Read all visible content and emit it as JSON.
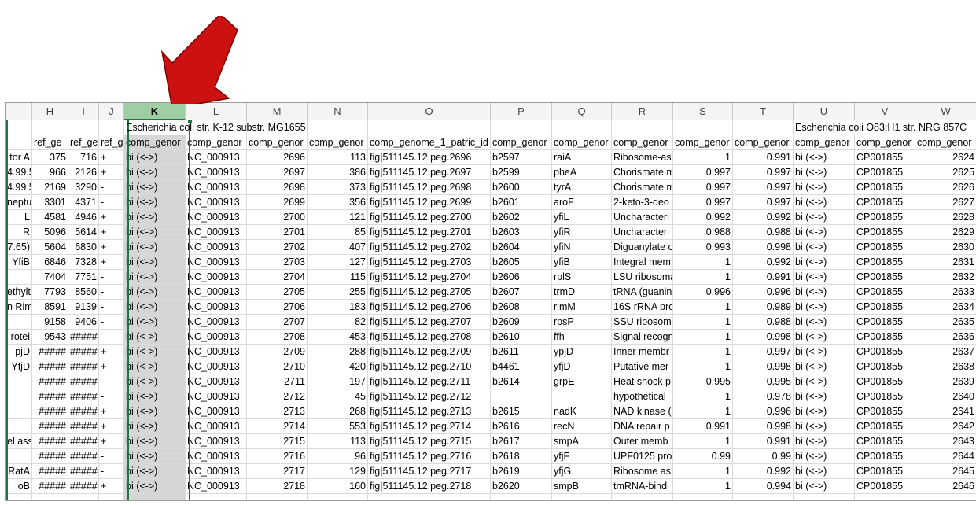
{
  "columns": [
    "H",
    "I",
    "J",
    "K",
    "L",
    "M",
    "N",
    "O",
    "P",
    "Q",
    "R",
    "S",
    "T",
    "U",
    "V",
    "W"
  ],
  "selected_column": "K",
  "group_headers": {
    "K": "Escherichia coli str. K-12 substr. MG1655",
    "U": "Escherichia coli O83:H1 str. NRG 857C"
  },
  "field_headers": [
    "ref_ge",
    "ref_ge",
    "ref_ge",
    "comp_genor",
    "comp_genor",
    "comp_genor",
    "comp_genor",
    "comp_genome_1_patric_id",
    "comp_genor",
    "comp_genor",
    "comp_genor",
    "comp_genor",
    "comp_genor",
    "comp_genor",
    "comp_genor",
    "comp_genor"
  ],
  "row_fragments": [
    "tor A",
    "4.99.5",
    "4.99.5",
    "neptu",
    "L",
    "R",
    "7.65)",
    "YfiB",
    "",
    "ethylt",
    "n Rim",
    "",
    "rotei",
    "pjD",
    "YfjD",
    "",
    "",
    "",
    "",
    "el ass",
    "",
    "RatA",
    "oB"
  ],
  "rows": [
    [
      "375",
      "716",
      "+",
      "bi (<->)",
      "NC_000913",
      "2696",
      "113",
      "fig|511145.12.peg.2696",
      "b2597",
      "raiA",
      "Ribosome-as",
      "1",
      "0.991",
      "bi (<->)",
      "CP001855",
      "2624"
    ],
    [
      "966",
      "2126",
      "+",
      "bi (<->)",
      "NC_000913",
      "2697",
      "386",
      "fig|511145.12.peg.2697",
      "b2599",
      "pheA",
      "Chorismate m",
      "0.997",
      "0.997",
      "bi (<->)",
      "CP001855",
      "2625"
    ],
    [
      "2169",
      "3290",
      "-",
      "bi (<->)",
      "NC_000913",
      "2698",
      "373",
      "fig|511145.12.peg.2698",
      "b2600",
      "tyrA",
      "Chorismate m",
      "0.997",
      "0.997",
      "bi (<->)",
      "CP001855",
      "2626"
    ],
    [
      "3301",
      "4371",
      "-",
      "bi (<->)",
      "NC_000913",
      "2699",
      "356",
      "fig|511145.12.peg.2699",
      "b2601",
      "aroF",
      "2-keto-3-deo",
      "0.997",
      "0.997",
      "bi (<->)",
      "CP001855",
      "2627"
    ],
    [
      "4581",
      "4946",
      "+",
      "bi (<->)",
      "NC_000913",
      "2700",
      "121",
      "fig|511145.12.peg.2700",
      "b2602",
      "yfiL",
      "Uncharacteri",
      "0.992",
      "0.992",
      "bi (<->)",
      "CP001855",
      "2628"
    ],
    [
      "5096",
      "5614",
      "+",
      "bi (<->)",
      "NC_000913",
      "2701",
      "85",
      "fig|511145.12.peg.2701",
      "b2603",
      "yfiR",
      "Uncharacteri",
      "0.988",
      "0.988",
      "bi (<->)",
      "CP001855",
      "2629"
    ],
    [
      "5604",
      "6830",
      "+",
      "bi (<->)",
      "NC_000913",
      "2702",
      "407",
      "fig|511145.12.peg.2702",
      "b2604",
      "yfiN",
      "Diguanylate c",
      "0.993",
      "0.998",
      "bi (<->)",
      "CP001855",
      "2630"
    ],
    [
      "6846",
      "7328",
      "+",
      "bi (<->)",
      "NC_000913",
      "2703",
      "127",
      "fig|511145.12.peg.2703",
      "b2605",
      "yfiB",
      "Integral mem",
      "1",
      "0.992",
      "bi (<->)",
      "CP001855",
      "2631"
    ],
    [
      "7404",
      "7751",
      "-",
      "bi (<->)",
      "NC_000913",
      "2704",
      "115",
      "fig|511145.12.peg.2704",
      "b2606",
      "rplS",
      "LSU ribosoma",
      "1",
      "0.991",
      "bi (<->)",
      "CP001855",
      "2632"
    ],
    [
      "7793",
      "8560",
      "-",
      "bi (<->)",
      "NC_000913",
      "2705",
      "255",
      "fig|511145.12.peg.2705",
      "b2607",
      "trmD",
      "tRNA (guanin",
      "0.996",
      "0.996",
      "bi (<->)",
      "CP001855",
      "2633"
    ],
    [
      "8591",
      "9139",
      "-",
      "bi (<->)",
      "NC_000913",
      "2706",
      "183",
      "fig|511145.12.peg.2706",
      "b2608",
      "rimM",
      "16S rRNA pro",
      "1",
      "0.989",
      "bi (<->)",
      "CP001855",
      "2634"
    ],
    [
      "9158",
      "9406",
      "-",
      "bi (<->)",
      "NC_000913",
      "2707",
      "82",
      "fig|511145.12.peg.2707",
      "b2609",
      "rpsP",
      "SSU ribosom",
      "1",
      "0.988",
      "bi (<->)",
      "CP001855",
      "2635"
    ],
    [
      "9543",
      "#####",
      "-",
      "bi (<->)",
      "NC_000913",
      "2708",
      "453",
      "fig|511145.12.peg.2708",
      "b2610",
      "ffh",
      "Signal recogn",
      "1",
      "0.998",
      "bi (<->)",
      "CP001855",
      "2636"
    ],
    [
      "#####",
      "#####",
      "+",
      "bi (<->)",
      "NC_000913",
      "2709",
      "288",
      "fig|511145.12.peg.2709",
      "b2611",
      "ypjD",
      "Inner membr",
      "1",
      "0.997",
      "bi (<->)",
      "CP001855",
      "2637"
    ],
    [
      "#####",
      "#####",
      "+",
      "bi (<->)",
      "NC_000913",
      "2710",
      "420",
      "fig|511145.12.peg.2710",
      "b4461",
      "yfjD",
      "Putative mer",
      "1",
      "0.998",
      "bi (<->)",
      "CP001855",
      "2638"
    ],
    [
      "#####",
      "#####",
      "-",
      "bi (<->)",
      "NC_000913",
      "2711",
      "197",
      "fig|511145.12.peg.2711",
      "b2614",
      "grpE",
      "Heat shock p",
      "0.995",
      "0.995",
      "bi (<->)",
      "CP001855",
      "2639"
    ],
    [
      "#####",
      "#####",
      "-",
      "bi (<->)",
      "NC_000913",
      "2712",
      "45",
      "fig|511145.12.peg.2712",
      "",
      "",
      "hypothetical",
      "1",
      "0.978",
      "bi (<->)",
      "CP001855",
      "2640"
    ],
    [
      "#####",
      "#####",
      "+",
      "bi (<->)",
      "NC_000913",
      "2713",
      "268",
      "fig|511145.12.peg.2713",
      "b2615",
      "nadK",
      "NAD kinase (",
      "1",
      "0.996",
      "bi (<->)",
      "CP001855",
      "2641"
    ],
    [
      "#####",
      "#####",
      "+",
      "bi (<->)",
      "NC_000913",
      "2714",
      "553",
      "fig|511145.12.peg.2714",
      "b2616",
      "recN",
      "DNA repair p",
      "0.991",
      "0.998",
      "bi (<->)",
      "CP001855",
      "2642"
    ],
    [
      "#####",
      "#####",
      "+",
      "bi (<->)",
      "NC_000913",
      "2715",
      "113",
      "fig|511145.12.peg.2715",
      "b2617",
      "smpA",
      "Outer memb",
      "1",
      "0.991",
      "bi (<->)",
      "CP001855",
      "2643"
    ],
    [
      "#####",
      "#####",
      "-",
      "bi (<->)",
      "NC_000913",
      "2716",
      "96",
      "fig|511145.12.peg.2716",
      "b2618",
      "yfjF",
      "UPF0125 pro",
      "0.99",
      "0.99",
      "bi (<->)",
      "CP001855",
      "2644"
    ],
    [
      "#####",
      "#####",
      "-",
      "bi (<->)",
      "NC_000913",
      "2717",
      "129",
      "fig|511145.12.peg.2717",
      "b2619",
      "yfjG",
      "Ribosome as",
      "1",
      "0.992",
      "bi (<->)",
      "CP001855",
      "2645"
    ],
    [
      "#####",
      "#####",
      "+",
      "bi (<->)",
      "NC_000913",
      "2718",
      "160",
      "fig|511145.12.peg.2718",
      "b2620",
      "smpB",
      "tmRNA-bindi",
      "1",
      "0.994",
      "bi (<->)",
      "CP001855",
      "2646"
    ]
  ],
  "colors": {
    "selection": "#217346",
    "selected_header": "#9fcda4",
    "selected_column_fill": "#d6d6d6",
    "arrow": "#cc1111"
  },
  "arrow_icon": "red-arrow-pointing-to-column-k"
}
